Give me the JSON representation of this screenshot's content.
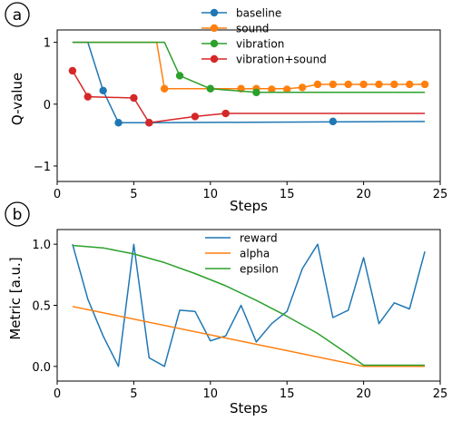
{
  "panels": [
    {
      "label": "a",
      "chart_data": {
        "type": "line",
        "xlabel": "Steps",
        "ylabel": "Q-value",
        "xlim": [
          0,
          25
        ],
        "ylim": [
          -1.25,
          1.2
        ],
        "xticks": [
          0,
          5,
          10,
          15,
          20,
          25
        ],
        "yticks": [
          -1,
          0,
          1
        ],
        "xtick_labels": [
          "0",
          "5",
          "10",
          "15",
          "20",
          "25"
        ],
        "ytick_labels": [
          "−1",
          "0",
          "1"
        ],
        "grid": false,
        "legend_position": "top-right",
        "series": [
          {
            "name": "baseline",
            "color": "#1f77b4",
            "line": [
              [
                1,
                1.0
              ],
              [
                2,
                1.0
              ],
              [
                3,
                0.22
              ],
              [
                4,
                -0.3
              ],
              [
                6,
                -0.3
              ],
              [
                24,
                -0.28
              ]
            ],
            "markers": [
              [
                3,
                0.22
              ],
              [
                4,
                -0.3
              ],
              [
                6,
                -0.3
              ],
              [
                18,
                -0.28
              ]
            ]
          },
          {
            "name": "sound",
            "color": "#ff7f0e",
            "line": [
              [
                1,
                1.0
              ],
              [
                6,
                1.0
              ],
              [
                6.5,
                1.0
              ],
              [
                7,
                0.25
              ],
              [
                15,
                0.25
              ],
              [
                16,
                0.27
              ],
              [
                17,
                0.32
              ],
              [
                24,
                0.32
              ]
            ],
            "markers": [
              [
                7,
                0.25
              ],
              [
                12,
                0.25
              ],
              [
                13,
                0.25
              ],
              [
                14,
                0.24
              ],
              [
                15,
                0.24
              ],
              [
                16,
                0.27
              ],
              [
                17,
                0.32
              ],
              [
                18,
                0.32
              ],
              [
                19,
                0.32
              ],
              [
                20,
                0.32
              ],
              [
                21,
                0.32
              ],
              [
                22,
                0.32
              ],
              [
                23,
                0.32
              ],
              [
                24,
                0.32
              ]
            ]
          },
          {
            "name": "vibration",
            "color": "#2ca02c",
            "line": [
              [
                1,
                1.0
              ],
              [
                7,
                1.0
              ],
              [
                8,
                0.46
              ],
              [
                10,
                0.25
              ],
              [
                13,
                0.19
              ],
              [
                24,
                0.19
              ]
            ],
            "markers": [
              [
                8,
                0.46
              ],
              [
                10,
                0.25
              ],
              [
                13,
                0.19
              ]
            ]
          },
          {
            "name": "vibration+sound",
            "color": "#d62728",
            "line": [
              [
                1,
                0.54
              ],
              [
                2,
                0.12
              ],
              [
                5,
                0.1
              ],
              [
                6,
                -0.3
              ],
              [
                9,
                -0.2
              ],
              [
                11,
                -0.15
              ],
              [
                24,
                -0.15
              ]
            ],
            "markers": [
              [
                1,
                0.54
              ],
              [
                2,
                0.12
              ],
              [
                5,
                0.1
              ],
              [
                6,
                -0.3
              ],
              [
                9,
                -0.2
              ],
              [
                11,
                -0.15
              ]
            ]
          }
        ]
      }
    },
    {
      "label": "b",
      "chart_data": {
        "type": "line",
        "xlabel": "Steps",
        "ylabel": "Metric [a.u.]",
        "xlim": [
          0,
          25
        ],
        "ylim": [
          -0.12,
          1.12
        ],
        "xticks": [
          0,
          5,
          10,
          15,
          20,
          25
        ],
        "yticks": [
          0.0,
          0.5,
          1.0
        ],
        "xtick_labels": [
          "0",
          "5",
          "10",
          "15",
          "20",
          "25"
        ],
        "ytick_labels": [
          "0.0",
          "0.5",
          "1.0"
        ],
        "grid": false,
        "legend_position": "top-center",
        "series": [
          {
            "name": "reward",
            "color": "#1f77b4",
            "line": [
              [
                1,
                1.0
              ],
              [
                2,
                0.55
              ],
              [
                3,
                0.25
              ],
              [
                4,
                0.0
              ],
              [
                5,
                1.0
              ],
              [
                6,
                0.07
              ],
              [
                7,
                0.0
              ],
              [
                8,
                0.46
              ],
              [
                9,
                0.45
              ],
              [
                10,
                0.21
              ],
              [
                11,
                0.25
              ],
              [
                12,
                0.5
              ],
              [
                13,
                0.2
              ],
              [
                14,
                0.35
              ],
              [
                15,
                0.45
              ],
              [
                16,
                0.8
              ],
              [
                17,
                1.0
              ],
              [
                18,
                0.4
              ],
              [
                19,
                0.46
              ],
              [
                20,
                0.89
              ],
              [
                21,
                0.35
              ],
              [
                22,
                0.52
              ],
              [
                23,
                0.47
              ],
              [
                24,
                0.94
              ]
            ],
            "markers": []
          },
          {
            "name": "alpha",
            "color": "#ff7f0e",
            "line": [
              [
                1,
                0.49
              ],
              [
                20,
                0.0
              ],
              [
                24,
                0.0
              ]
            ],
            "markers": []
          },
          {
            "name": "epsilon",
            "color": "#2ca02c",
            "line": [
              [
                1,
                0.99
              ],
              [
                3,
                0.97
              ],
              [
                5,
                0.92
              ],
              [
                7,
                0.85
              ],
              [
                9,
                0.76
              ],
              [
                11,
                0.66
              ],
              [
                13,
                0.54
              ],
              [
                15,
                0.41
              ],
              [
                17,
                0.27
              ],
              [
                19,
                0.1
              ],
              [
                20,
                0.01
              ],
              [
                24,
                0.01
              ]
            ],
            "markers": []
          }
        ]
      }
    }
  ]
}
